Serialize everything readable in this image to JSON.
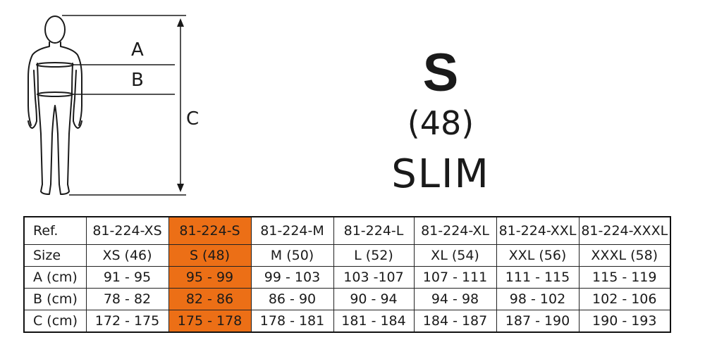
{
  "figure": {
    "labels": {
      "a": "A",
      "b": "B",
      "c": "C"
    }
  },
  "size_info": {
    "size": "S",
    "eu_size": "(48)",
    "fit": "SLIM"
  },
  "colors": {
    "highlight": "#ec6f16",
    "line": "#1a1a1a"
  },
  "table": {
    "highlight_column": 1,
    "rows": [
      {
        "header": "Ref.",
        "cells": [
          "81-224-XS",
          "81-224-S",
          "81-224-M",
          "81-224-L",
          "81-224-XL",
          "81-224-XXL",
          "81-224-XXXL"
        ]
      },
      {
        "header": "Size",
        "cells": [
          "XS (46)",
          "S (48)",
          "M (50)",
          "L (52)",
          "XL (54)",
          "XXL (56)",
          "XXXL (58)"
        ]
      },
      {
        "header": "A (cm)",
        "cells": [
          "91 - 95",
          "95 - 99",
          "99 - 103",
          "103 -107",
          "107 - 111",
          "111 - 115",
          "115  - 119"
        ]
      },
      {
        "header": "B (cm)",
        "cells": [
          "78 - 82",
          "82 - 86",
          "86 - 90",
          "90 - 94",
          "94 - 98",
          "98 - 102",
          "102 - 106"
        ]
      },
      {
        "header": "C (cm)",
        "cells": [
          "172 - 175",
          "175 - 178",
          "178 - 181",
          "181 - 184",
          "184 - 187",
          "187 - 190",
          "190 - 193"
        ]
      }
    ]
  }
}
